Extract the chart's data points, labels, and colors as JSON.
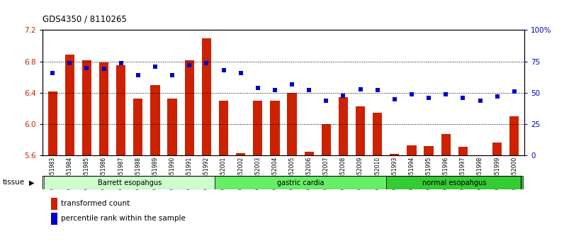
{
  "title": "GDS4350 / 8110265",
  "samples": [
    "GSM851983",
    "GSM851984",
    "GSM851985",
    "GSM851986",
    "GSM851987",
    "GSM851988",
    "GSM851989",
    "GSM851990",
    "GSM851991",
    "GSM851992",
    "GSM852001",
    "GSM852002",
    "GSM852003",
    "GSM852004",
    "GSM852005",
    "GSM852006",
    "GSM852007",
    "GSM852008",
    "GSM852009",
    "GSM852010",
    "GSM851993",
    "GSM851994",
    "GSM851995",
    "GSM851996",
    "GSM851997",
    "GSM851998",
    "GSM851999",
    "GSM852000"
  ],
  "bar_values": [
    6.42,
    6.89,
    6.82,
    6.79,
    6.75,
    6.33,
    6.5,
    6.33,
    6.82,
    7.1,
    6.3,
    5.63,
    6.3,
    6.3,
    6.4,
    5.65,
    6.0,
    6.35,
    6.23,
    6.15,
    5.62,
    5.73,
    5.72,
    5.88,
    5.71,
    5.6,
    5.77,
    6.1
  ],
  "percentile_values": [
    66,
    74,
    70,
    69,
    74,
    64,
    71,
    64,
    72,
    74,
    68,
    66,
    54,
    52,
    57,
    52,
    44,
    48,
    53,
    52,
    45,
    49,
    46,
    49,
    46,
    44,
    47,
    51
  ],
  "groups": [
    {
      "label": "Barrett esopahgus",
      "start": 0,
      "end": 9,
      "color": "#ccffcc"
    },
    {
      "label": "gastric cardia",
      "start": 10,
      "end": 19,
      "color": "#66ee66"
    },
    {
      "label": "normal esopahgus",
      "start": 20,
      "end": 27,
      "color": "#33cc33"
    }
  ],
  "ylim_left": [
    5.6,
    7.2
  ],
  "ylim_right": [
    0,
    100
  ],
  "yticks_left": [
    5.6,
    6.0,
    6.4,
    6.8,
    7.2
  ],
  "yticks_right": [
    0,
    25,
    50,
    75,
    100
  ],
  "ytick_labels_right": [
    "0",
    "25",
    "50",
    "75",
    "100%"
  ],
  "bar_color": "#cc2200",
  "dot_color": "#0000cc",
  "bar_bottom": 5.6,
  "legend_items": [
    {
      "label": "transformed count",
      "color": "#cc2200"
    },
    {
      "label": "percentile rank within the sample",
      "color": "#0000cc"
    }
  ],
  "tissue_label": "tissue"
}
